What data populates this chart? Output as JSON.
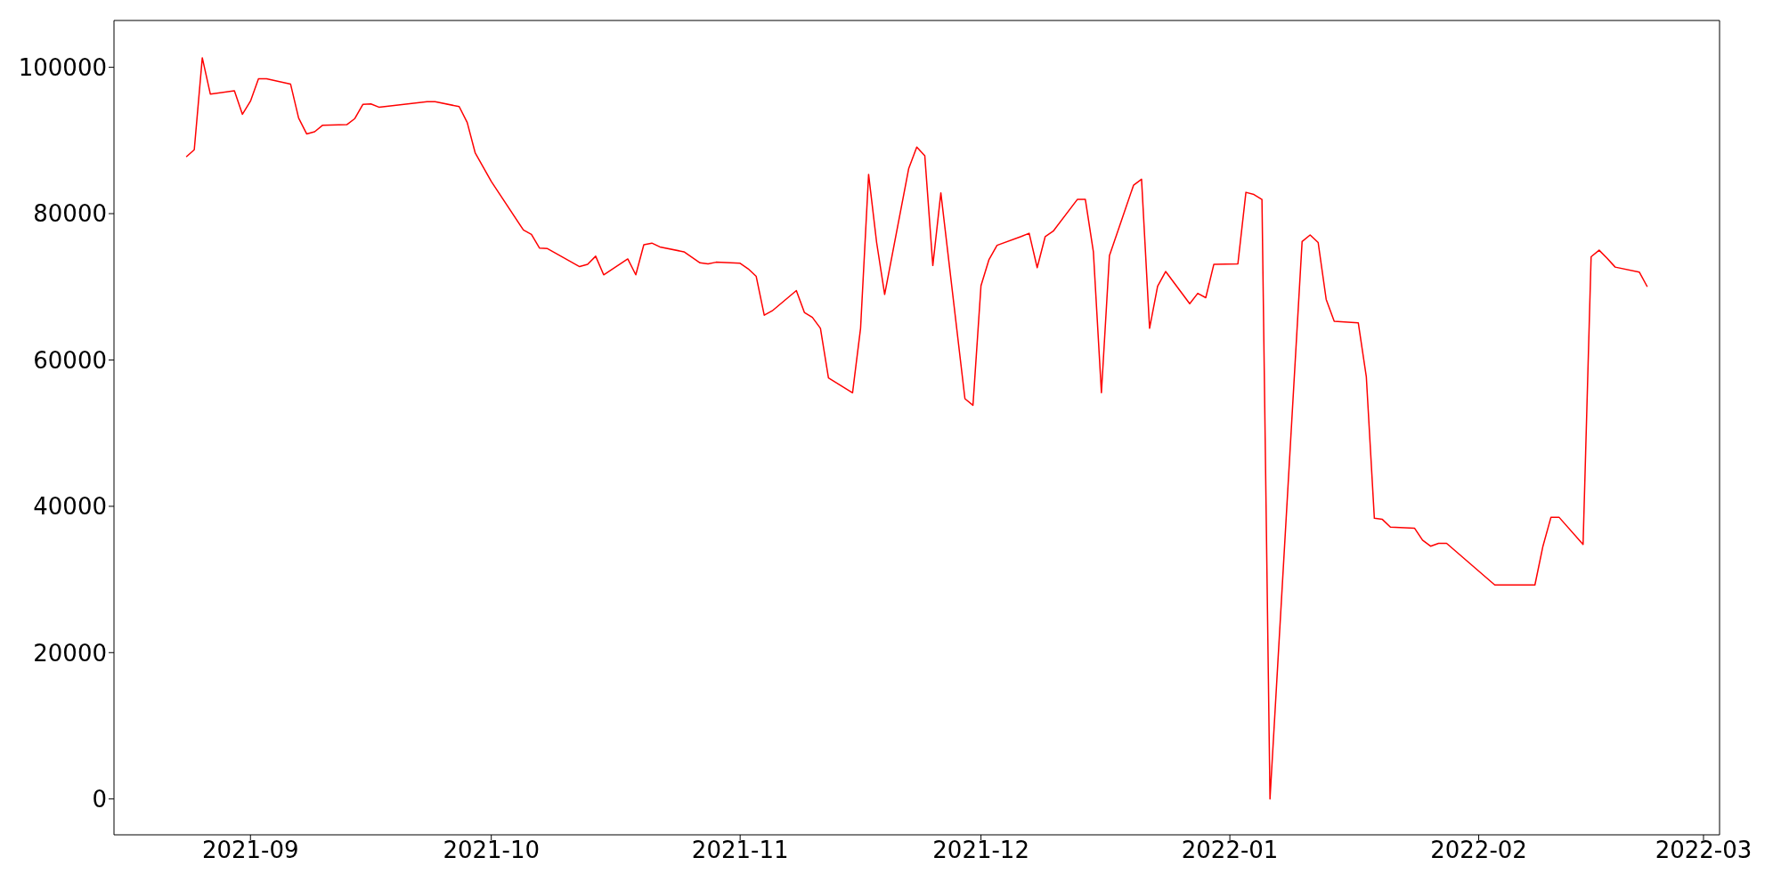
{
  "chart_data": {
    "type": "line",
    "x": [
      "2021-08-24",
      "2021-08-25",
      "2021-08-26",
      "2021-08-27",
      "2021-08-30",
      "2021-08-31",
      "2021-09-01",
      "2021-09-02",
      "2021-09-03",
      "2021-09-06",
      "2021-09-07",
      "2021-09-08",
      "2021-09-09",
      "2021-09-10",
      "2021-09-13",
      "2021-09-14",
      "2021-09-15",
      "2021-09-16",
      "2021-09-17",
      "2021-09-23",
      "2021-09-24",
      "2021-09-27",
      "2021-09-28",
      "2021-09-29",
      "2021-10-01",
      "2021-10-05",
      "2021-10-06",
      "2021-10-07",
      "2021-10-08",
      "2021-10-12",
      "2021-10-13",
      "2021-10-14",
      "2021-10-15",
      "2021-10-18",
      "2021-10-19",
      "2021-10-20",
      "2021-10-21",
      "2021-10-22",
      "2021-10-25",
      "2021-10-27",
      "2021-10-28",
      "2021-10-29",
      "2021-11-01",
      "2021-11-02",
      "2021-11-03",
      "2021-11-04",
      "2021-11-05",
      "2021-11-08",
      "2021-11-09",
      "2021-11-10",
      "2021-11-11",
      "2021-11-12",
      "2021-11-15",
      "2021-11-16",
      "2021-11-17",
      "2021-11-18",
      "2021-11-19",
      "2021-11-22",
      "2021-11-23",
      "2021-11-24",
      "2021-11-25",
      "2021-11-26",
      "2021-11-29",
      "2021-11-30",
      "2021-12-01",
      "2021-12-02",
      "2021-12-03",
      "2021-12-06",
      "2021-12-07",
      "2021-12-08",
      "2021-12-09",
      "2021-12-10",
      "2021-12-13",
      "2021-12-14",
      "2021-12-15",
      "2021-12-16",
      "2021-12-17",
      "2021-12-20",
      "2021-12-21",
      "2021-12-22",
      "2021-12-23",
      "2021-12-24",
      "2021-12-27",
      "2021-12-28",
      "2021-12-29",
      "2021-12-30",
      "2022-01-02",
      "2022-01-03",
      "2022-01-04",
      "2022-01-05",
      "2022-01-06",
      "2022-01-10",
      "2022-01-11",
      "2022-01-12",
      "2022-01-13",
      "2022-01-14",
      "2022-01-17",
      "2022-01-18",
      "2022-01-19",
      "2022-01-20",
      "2022-01-21",
      "2022-01-24",
      "2022-01-25",
      "2022-01-26",
      "2022-01-27",
      "2022-01-28",
      "2022-02-03",
      "2022-02-08",
      "2022-02-09",
      "2022-02-10",
      "2022-02-11",
      "2022-02-14",
      "2022-02-15",
      "2022-02-16",
      "2022-02-17",
      "2022-02-18",
      "2022-02-21",
      "2022-02-22"
    ],
    "series": [
      {
        "color": "#ff0000",
        "values": [
          87760,
          88730,
          101300,
          96340,
          96790,
          93580,
          95370,
          98430,
          98430,
          97690,
          93060,
          90900,
          91190,
          92090,
          92160,
          92990,
          94930,
          95000,
          94550,
          95300,
          95300,
          94630,
          92460,
          88280,
          84400,
          77760,
          77160,
          75300,
          75220,
          72760,
          73060,
          74180,
          71640,
          73810,
          71640,
          75750,
          75970,
          75450,
          74780,
          73280,
          73130,
          73360,
          73210,
          72460,
          71420,
          66120,
          66720,
          69480,
          66490,
          65820,
          64330,
          57540,
          55520,
          64330,
          85370,
          76050,
          68960,
          86190,
          89100,
          87910,
          72910,
          82840,
          54700,
          53810,
          70150,
          73730,
          75670,
          76870,
          77310,
          72610,
          76870,
          77610,
          81940,
          81940,
          74780,
          55520,
          74250,
          83880,
          84700,
          64330,
          70070,
          72090,
          67690,
          69100,
          68510,
          73060,
          73130,
          82910,
          82610,
          81940,
          0,
          76190,
          77090,
          76050,
          68280,
          65300,
          65070,
          57690,
          38360,
          38210,
          37160,
          37010,
          35370,
          34550,
          34930,
          34930,
          29250,
          29250,
          34550,
          38510,
          38510,
          34780,
          74100,
          75000,
          73880,
          72690,
          72010,
          70000
        ]
      }
    ],
    "xlim": [
      "2021-08-15",
      "2022-03-03"
    ],
    "xticks": [
      "2021-09",
      "2021-10",
      "2021-11",
      "2021-12",
      "2022-01",
      "2022-02",
      "2022-03"
    ],
    "ylim": [
      -4900,
      106400
    ],
    "yticks": [
      0,
      20000,
      40000,
      60000,
      80000,
      100000
    ],
    "grid": false,
    "legend": false
  }
}
